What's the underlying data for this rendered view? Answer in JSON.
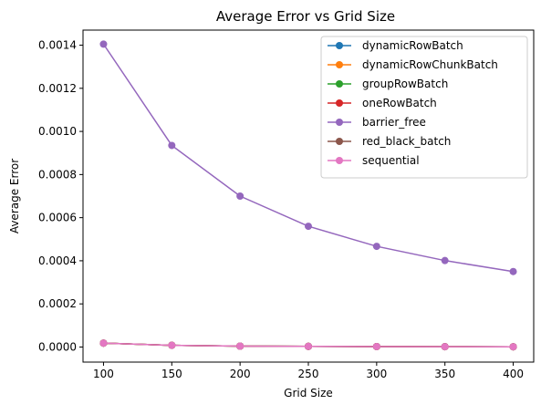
{
  "chart_data": {
    "type": "line",
    "title": "Average Error vs Grid Size",
    "xlabel": "Grid Size",
    "ylabel": "Average Error",
    "x": [
      100,
      150,
      200,
      250,
      300,
      350,
      400
    ],
    "xlim": [
      85,
      415
    ],
    "ylim": [
      -7e-05,
      0.00147
    ],
    "x_ticks": [
      100,
      150,
      200,
      250,
      300,
      350,
      400
    ],
    "x_tick_labels": [
      "100",
      "150",
      "200",
      "250",
      "300",
      "350",
      "400"
    ],
    "y_ticks": [
      0,
      0.0002,
      0.0004,
      0.0006,
      0.0008,
      0.001,
      0.0012,
      0.0014
    ],
    "y_tick_labels": [
      "0.0000",
      "0.0002",
      "0.0004",
      "0.0006",
      "0.0008",
      "0.0010",
      "0.0012",
      "0.0014"
    ],
    "grid": false,
    "legend_position": "top-right",
    "series": [
      {
        "name": "dynamicRowBatch",
        "color": "#1f77b4",
        "values": [
          1.8e-05,
          8e-06,
          4e-06,
          3e-06,
          2e-06,
          1.5e-06,
          1e-06
        ]
      },
      {
        "name": "dynamicRowChunkBatch",
        "color": "#ff7f0e",
        "values": [
          1.8e-05,
          8e-06,
          4e-06,
          3e-06,
          2e-06,
          1.5e-06,
          1e-06
        ]
      },
      {
        "name": "groupRowBatch",
        "color": "#2ca02c",
        "values": [
          1.8e-05,
          8e-06,
          4e-06,
          3e-06,
          2e-06,
          1.5e-06,
          1e-06
        ]
      },
      {
        "name": "oneRowBatch",
        "color": "#d62728",
        "values": [
          1.8e-05,
          8e-06,
          4e-06,
          3e-06,
          2e-06,
          1.5e-06,
          1e-06
        ]
      },
      {
        "name": "barrier_free",
        "color": "#9467bd",
        "values": [
          0.001405,
          0.000935,
          0.0007,
          0.00056,
          0.000467,
          0.000401,
          0.00035
        ]
      },
      {
        "name": "red_black_batch",
        "color": "#8c564b",
        "values": [
          1.8e-05,
          8e-06,
          4e-06,
          3e-06,
          2e-06,
          1.5e-06,
          1e-06
        ]
      },
      {
        "name": "sequential",
        "color": "#e377c2",
        "values": [
          1.8e-05,
          8e-06,
          4e-06,
          3e-06,
          2e-06,
          1.5e-06,
          1e-06
        ]
      }
    ]
  }
}
